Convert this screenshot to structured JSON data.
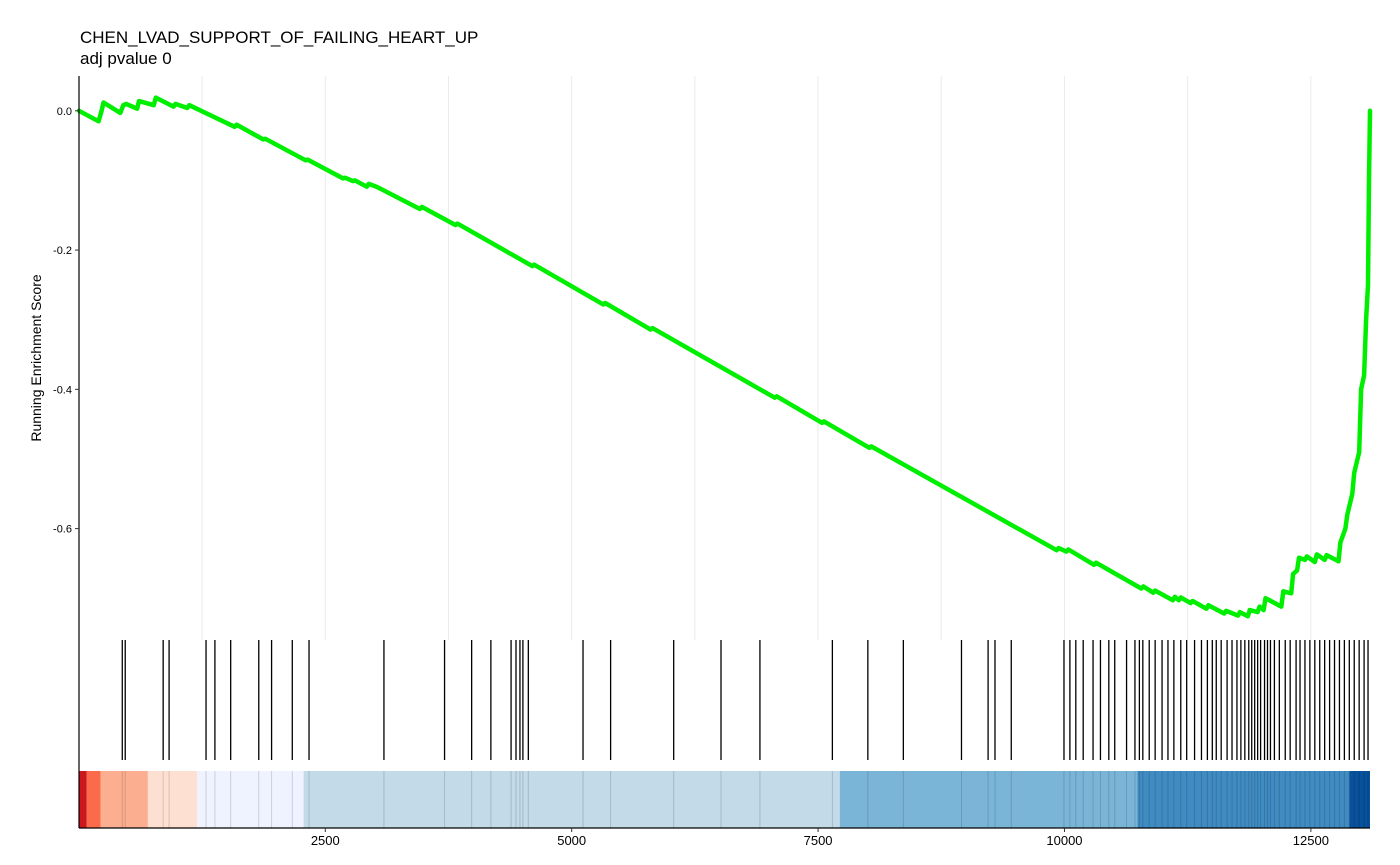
{
  "chart_data": {
    "type": "line",
    "title": "CHEN_LVAD_SUPPORT_OF_FAILING_HEART_UP",
    "subtitle": "adj pvalue 0",
    "ylabel": "Running Enrichment Score",
    "xlabel": "",
    "xlim": [
      1,
      13100
    ],
    "ylim": [
      -0.76,
      0.05
    ],
    "grid": true,
    "y_ticks": [
      0.0,
      -0.2,
      -0.4,
      -0.6
    ],
    "y_tick_labels": [
      "0.0",
      "-0.2",
      "-0.4",
      "-0.6"
    ],
    "x_ticks": [
      2500,
      5000,
      7500,
      10000,
      12500
    ],
    "x_tick_labels": [
      "2500",
      "5000",
      "7500",
      "10000",
      "12500"
    ],
    "series": [
      {
        "color": "#00ee00",
        "x": [
          1,
          200,
          230,
          250,
          420,
          450,
          480,
          590,
          610,
          760,
          780,
          960,
          980,
          1100,
          1120,
          1580,
          1600,
          1870,
          1890,
          2300,
          2320,
          2680,
          2700,
          2780,
          2800,
          2920,
          2940,
          3020,
          3460,
          3480,
          3820,
          3840,
          4600,
          4620,
          5320,
          5340,
          5800,
          5820,
          7060,
          7080,
          7540,
          7560,
          8020,
          8040,
          9920,
          9940,
          10020,
          10040,
          10300,
          10320,
          10780,
          10800,
          10900,
          10920,
          11100,
          11120,
          11160,
          11180,
          11280,
          11300,
          11440,
          11460,
          11620,
          11640,
          11760,
          11780,
          11860,
          11880,
          11960,
          11980,
          12020,
          12040,
          12080,
          12200,
          12220,
          12300,
          12320,
          12360,
          12380,
          12440,
          12460,
          12540,
          12560,
          12640,
          12660,
          12780,
          12800,
          12850,
          12870,
          12920,
          12940,
          12990,
          13010,
          13040,
          13060,
          13080,
          13090,
          13095,
          13100
        ],
        "y": [
          0.0,
          -0.015,
          0.0,
          0.012,
          -0.003,
          0.008,
          0.01,
          0.003,
          0.014,
          0.008,
          0.019,
          0.006,
          0.01,
          0.004,
          0.008,
          -0.023,
          -0.02,
          -0.041,
          -0.04,
          -0.071,
          -0.07,
          -0.097,
          -0.096,
          -0.101,
          -0.1,
          -0.109,
          -0.105,
          -0.109,
          -0.141,
          -0.138,
          -0.164,
          -0.162,
          -0.223,
          -0.221,
          -0.278,
          -0.276,
          -0.314,
          -0.312,
          -0.412,
          -0.41,
          -0.448,
          -0.446,
          -0.484,
          -0.482,
          -0.631,
          -0.628,
          -0.633,
          -0.63,
          -0.652,
          -0.649,
          -0.686,
          -0.683,
          -0.692,
          -0.689,
          -0.703,
          -0.698,
          -0.703,
          -0.699,
          -0.707,
          -0.704,
          -0.715,
          -0.71,
          -0.722,
          -0.718,
          -0.725,
          -0.72,
          -0.726,
          -0.717,
          -0.72,
          -0.712,
          -0.717,
          -0.7,
          -0.703,
          -0.712,
          -0.69,
          -0.693,
          -0.665,
          -0.66,
          -0.642,
          -0.645,
          -0.64,
          -0.648,
          -0.637,
          -0.645,
          -0.638,
          -0.647,
          -0.62,
          -0.6,
          -0.58,
          -0.55,
          -0.52,
          -0.49,
          -0.4,
          -0.38,
          -0.3,
          -0.25,
          -0.1,
          -0.05,
          0.0
        ]
      }
    ],
    "hits": [
      440,
      470,
      855,
      915,
      1290,
      1380,
      1540,
      1825,
      1955,
      2165,
      2335,
      3095,
      3710,
      3985,
      4180,
      4385,
      4435,
      4475,
      4505,
      4560,
      5115,
      5395,
      6035,
      6515,
      6910,
      7645,
      8005,
      8365,
      8955,
      9225,
      9295,
      9460,
      9995,
      10055,
      10115,
      10190,
      10290,
      10365,
      10450,
      10510,
      10630,
      10715,
      10760,
      10795,
      10860,
      10920,
      10990,
      11050,
      11110,
      11180,
      11240,
      11320,
      11390,
      11450,
      11500,
      11540,
      11590,
      11650,
      11700,
      11750,
      11790,
      11830,
      11870,
      11900,
      11930,
      11960,
      11990,
      12030,
      12060,
      12090,
      12130,
      12180,
      12240,
      12290,
      12350,
      12390,
      12440,
      12490,
      12540,
      12590,
      12640,
      12690,
      12740,
      12790,
      12840,
      12890,
      12940,
      12990,
      13040,
      13080
    ],
    "rank_color_bands": [
      {
        "from": 1,
        "to": 80,
        "color": "#cb181d"
      },
      {
        "from": 80,
        "to": 220,
        "color": "#fb6a4a"
      },
      {
        "from": 220,
        "to": 700,
        "color": "#fcae91"
      },
      {
        "from": 700,
        "to": 1200,
        "color": "#fee0d2"
      },
      {
        "from": 1200,
        "to": 2280,
        "color": "#eff3ff"
      },
      {
        "from": 2280,
        "to": 7720,
        "color": "#c3dae8"
      },
      {
        "from": 7720,
        "to": 10740,
        "color": "#7ab5d8"
      },
      {
        "from": 10740,
        "to": 12890,
        "color": "#3f8bc2"
      },
      {
        "from": 12890,
        "to": 13100,
        "color": "#08519c"
      }
    ]
  }
}
